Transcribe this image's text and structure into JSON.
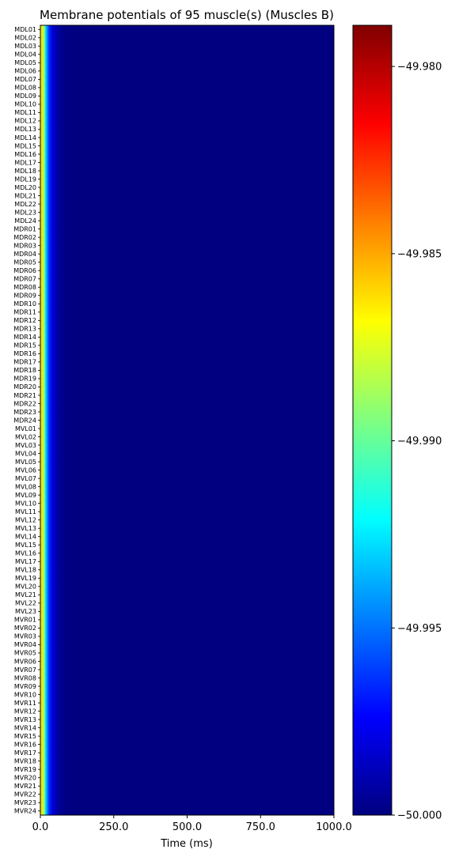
{
  "chart_data": {
    "type": "heatmap",
    "title": "Membrane potentials of 95 muscle(s) (Muscles B)",
    "xlabel": "Time (ms)",
    "xlim": [
      0,
      1000
    ],
    "xticks": [
      0,
      250,
      500,
      750,
      1000
    ],
    "xtick_labels": [
      "0.0",
      "250.0",
      "500.0",
      "750.0",
      "1000.0"
    ],
    "colormap": "jet",
    "color_range": [
      -50.0,
      -49.9789
    ],
    "colorbar_ticks": [
      -50.0,
      -49.995,
      -49.99,
      -49.985,
      -49.98
    ],
    "colorbar_tick_labels": [
      "−50.000",
      "−49.995",
      "−49.990",
      "−49.985",
      "−49.980"
    ],
    "muscles": [
      "MDL01",
      "MDL02",
      "MDL03",
      "MDL04",
      "MDL05",
      "MDL06",
      "MDL07",
      "MDL08",
      "MDL09",
      "MDL10",
      "MDL11",
      "MDL12",
      "MDL13",
      "MDL14",
      "MDL15",
      "MDL16",
      "MDL17",
      "MDL18",
      "MDL19",
      "MDL20",
      "MDL21",
      "MDL22",
      "MDL23",
      "MDL24",
      "MDR01",
      "MDR02",
      "MDR03",
      "MDR04",
      "MDR05",
      "MDR06",
      "MDR07",
      "MDR08",
      "MDR09",
      "MDR10",
      "MDR11",
      "MDR12",
      "MDR13",
      "MDR14",
      "MDR15",
      "MDR16",
      "MDR17",
      "MDR18",
      "MDR19",
      "MDR20",
      "MDR21",
      "MDR22",
      "MDR23",
      "MDR24",
      "MVL01",
      "MVL02",
      "MVL03",
      "MVL04",
      "MVL05",
      "MVL06",
      "MVL07",
      "MVL08",
      "MVL09",
      "MVL10",
      "MVL11",
      "MVL12",
      "MVL13",
      "MVL14",
      "MVL15",
      "MVL16",
      "MVL17",
      "MVL18",
      "MVL19",
      "MVL20",
      "MVL21",
      "MVL22",
      "MVL23",
      "MVR01",
      "MVR02",
      "MVR03",
      "MVR04",
      "MVR05",
      "MVR06",
      "MVR07",
      "MVR08",
      "MVR09",
      "MVR10",
      "MVR11",
      "MVR12",
      "MVR13",
      "MVR14",
      "MVR15",
      "MVR16",
      "MVR17",
      "MVR18",
      "MVR19",
      "MVR20",
      "MVR21",
      "MVR22",
      "MVR23",
      "MVR24"
    ],
    "time_profile": {
      "t_ms": [
        0,
        5,
        10,
        15,
        20,
        30,
        40,
        50,
        60,
        70,
        80,
        100,
        130,
        1000
      ],
      "value": [
        -49.9874,
        -49.986,
        -49.988,
        -49.9905,
        -49.9935,
        -49.9965,
        -49.998,
        -49.9988,
        -49.9993,
        -49.9996,
        -49.9998,
        -49.99995,
        -50.0,
        -50.0
      ]
    }
  }
}
